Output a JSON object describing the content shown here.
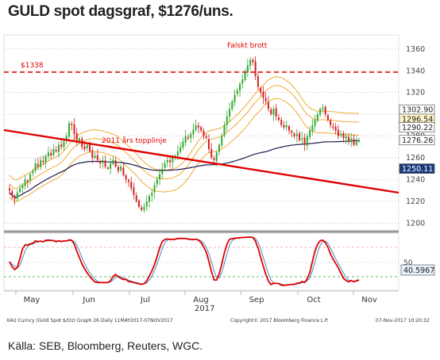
{
  "title": "GULD spot dagsgraf, $1276/uns.",
  "source": "Källa: SEB, Bloomberg, Reuters, WGC.",
  "footer": {
    "left": "XAU Curncy (Gold Spot $/Oz) Graph 26 Daily 11MAY2017-07NOV2017",
    "center": "Copyright© 2017 Bloomberg Finance L.P.",
    "right": "07-Nov-2017 10:20:32"
  },
  "colors": {
    "up_candle": "#2eaa2e",
    "down_candle": "#d42020",
    "trendline": "#e00000",
    "resistance": "#e00000",
    "ma_upper": "#f0a020",
    "ma_lower": "#1a1a4a",
    "stoch_k": "#e00000",
    "stoch_d": "#4a8ac0"
  },
  "chart_data": [
    {
      "type": "candlestick",
      "y_ticks": [
        1200,
        1220,
        1240,
        1260,
        1280,
        1300,
        1320,
        1340,
        1360
      ],
      "ylim": [
        1193,
        1373
      ],
      "x_month_labels": [
        "May",
        "Jun",
        "Jul",
        "Aug",
        "Sep",
        "Oct",
        "Nov"
      ],
      "x_year_label": "2017",
      "annotations": {
        "false_break": "Falskt brott",
        "topline_2011": "2011 års topplinje",
        "resistance_label": "$1338",
        "resistance_level": 1338
      },
      "price_tags": [
        {
          "label": "1302.90",
          "value": 1302.9
        },
        {
          "label": "1296.54",
          "value": 1296.54
        },
        {
          "label": "1290.22",
          "value": 1290.22
        },
        {
          "label": "1276.26",
          "value": 1276.26
        },
        {
          "label": "1250.11",
          "value": 1250.11
        }
      ],
      "close_series": [
        1230,
        1225,
        1222,
        1228,
        1232,
        1235,
        1240,
        1238,
        1245,
        1248,
        1255,
        1252,
        1258,
        1256,
        1262,
        1265,
        1262,
        1268,
        1266,
        1272,
        1270,
        1275,
        1280,
        1292,
        1290,
        1282,
        1275,
        1278,
        1270,
        1268,
        1272,
        1266,
        1260,
        1262,
        1258,
        1255,
        1258,
        1252,
        1250,
        1255,
        1258,
        1252,
        1248,
        1252,
        1244,
        1240,
        1238,
        1232,
        1226,
        1220,
        1215,
        1212,
        1215,
        1220,
        1225,
        1228,
        1235,
        1240,
        1245,
        1250,
        1255,
        1258,
        1256,
        1260,
        1262,
        1266,
        1270,
        1275,
        1280,
        1278,
        1282,
        1286,
        1290,
        1288,
        1285,
        1280,
        1278,
        1268,
        1260,
        1258,
        1265,
        1272,
        1280,
        1290,
        1298,
        1305,
        1312,
        1318,
        1322,
        1328,
        1332,
        1338,
        1345,
        1350,
        1348,
        1335,
        1325,
        1320,
        1315,
        1312,
        1305,
        1300,
        1305,
        1298,
        1295,
        1290,
        1288,
        1290,
        1285,
        1283,
        1280,
        1282,
        1276,
        1278,
        1272,
        1280,
        1285,
        1290,
        1295,
        1300,
        1305,
        1306,
        1300,
        1295,
        1290,
        1288,
        1285,
        1280,
        1282,
        1278,
        1280,
        1275,
        1278,
        1272,
        1275,
        1276
      ]
    },
    {
      "type": "line",
      "name": "stochastic",
      "y_tick_visible": 50,
      "last_value_label": "40.5967",
      "last_value": 40.5967,
      "levels": [
        20,
        80
      ]
    }
  ]
}
